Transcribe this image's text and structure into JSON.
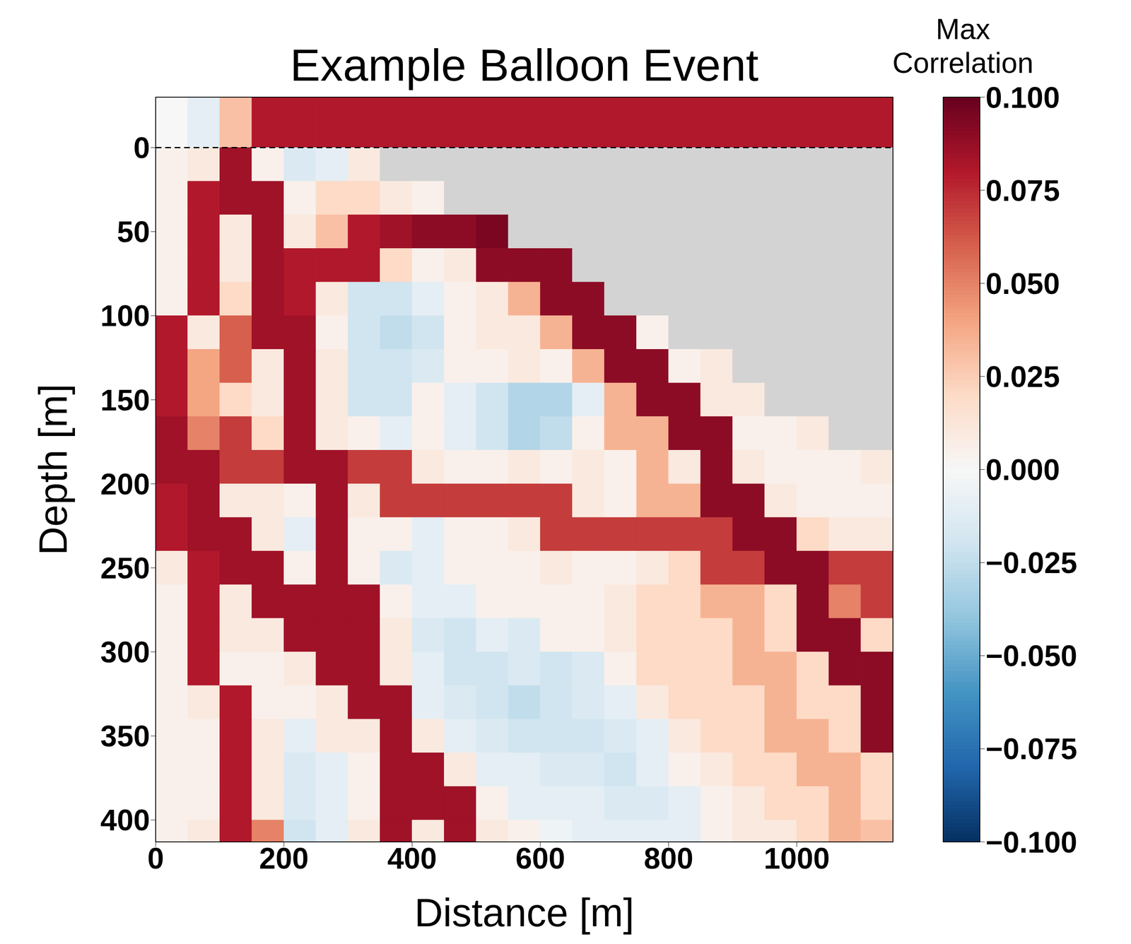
{
  "chart_data": {
    "type": "heatmap",
    "title": "Example Balloon Event",
    "x_label": "Distance [m]",
    "y_label": "Depth [m]",
    "xlim": [
      0,
      1150
    ],
    "ylim": [
      -30,
      413
    ],
    "xticks": [
      0,
      200,
      400,
      600,
      800,
      1000
    ],
    "yticks": [
      0,
      50,
      100,
      150,
      200,
      250,
      300,
      350,
      400
    ],
    "hline": 0,
    "x_edges": [
      0,
      50,
      100,
      150,
      200,
      250,
      300,
      350,
      400,
      450,
      500,
      550,
      600,
      650,
      700,
      750,
      800,
      850,
      900,
      950,
      1000,
      1050,
      1100,
      1150
    ],
    "y_edges": [
      -30,
      0,
      20,
      40,
      60,
      80,
      100,
      120,
      140,
      160,
      180,
      200,
      220,
      240,
      260,
      280,
      300,
      320,
      340,
      360,
      380,
      400,
      413
    ],
    "cells": [
      [
        0,
        -0.01,
        0.03,
        0.08,
        0.08,
        0.08,
        0.08,
        0.08,
        0.08,
        0.08,
        0.08,
        0.08,
        0.08,
        0.08,
        0.08,
        0.08,
        0.08,
        0.08,
        0.08,
        0.08,
        0.08,
        0.08,
        0.08
      ],
      [
        0.005,
        0.01,
        0.085,
        0.005,
        -0.015,
        -0.01,
        0.01,
        null,
        null,
        null,
        null,
        null,
        null,
        null,
        null,
        null,
        null,
        null,
        null,
        null,
        null,
        null,
        null
      ],
      [
        0.005,
        0.08,
        0.085,
        0.085,
        0.005,
        0.02,
        0.02,
        0.01,
        0.005,
        null,
        null,
        null,
        null,
        null,
        null,
        null,
        null,
        null,
        null,
        null,
        null,
        null,
        null
      ],
      [
        0.005,
        0.08,
        0.01,
        0.085,
        0.01,
        0.03,
        0.08,
        0.085,
        0.09,
        0.09,
        0.095,
        null,
        null,
        null,
        null,
        null,
        null,
        null,
        null,
        null,
        null,
        null,
        null
      ],
      [
        0.005,
        0.08,
        0.01,
        0.085,
        0.08,
        0.08,
        0.08,
        0.02,
        0.005,
        0.01,
        0.09,
        0.09,
        0.09,
        null,
        null,
        null,
        null,
        null,
        null,
        null,
        null,
        null,
        null
      ],
      [
        0.005,
        0.08,
        0.02,
        0.085,
        0.08,
        0.01,
        -0.02,
        -0.02,
        -0.01,
        0.005,
        0.01,
        0.035,
        0.09,
        0.09,
        null,
        null,
        null,
        null,
        null,
        null,
        null,
        null,
        null
      ],
      [
        0.08,
        0.01,
        0.06,
        0.085,
        0.085,
        0.005,
        -0.02,
        -0.025,
        -0.02,
        0.005,
        0.01,
        0.01,
        0.035,
        0.09,
        0.09,
        0.005,
        null,
        null,
        null,
        null,
        null,
        null,
        null
      ],
      [
        0.08,
        0.04,
        0.06,
        0.01,
        0.085,
        0.01,
        -0.02,
        -0.02,
        -0.015,
        0.005,
        0.005,
        0.01,
        0.005,
        0.035,
        0.09,
        0.09,
        0.005,
        0.01,
        null,
        null,
        null,
        null,
        null
      ],
      [
        0.08,
        0.04,
        0.02,
        0.01,
        0.085,
        0.01,
        -0.02,
        -0.02,
        0.005,
        -0.01,
        -0.02,
        -0.03,
        -0.03,
        -0.01,
        0.035,
        0.09,
        0.09,
        0.01,
        0.01,
        null,
        null,
        null,
        null
      ],
      [
        0.085,
        0.05,
        0.07,
        0.02,
        0.085,
        0.01,
        0.005,
        -0.01,
        0.005,
        -0.01,
        -0.02,
        -0.03,
        -0.025,
        0.005,
        0.035,
        0.035,
        0.09,
        0.09,
        0.005,
        0.005,
        0.01,
        null,
        null
      ],
      [
        0.085,
        0.085,
        0.07,
        0.07,
        0.085,
        0.085,
        0.07,
        0.07,
        0.01,
        0.005,
        0.005,
        0.01,
        0.005,
        0.01,
        0.005,
        0.035,
        0.01,
        0.09,
        0.01,
        0.005,
        0.005,
        0.005,
        0.01
      ],
      [
        0.08,
        0.085,
        0.01,
        0.01,
        0.005,
        0.085,
        0.01,
        0.07,
        0.07,
        0.07,
        0.07,
        0.07,
        0.07,
        0.01,
        0.005,
        0.035,
        0.035,
        0.09,
        0.09,
        0.01,
        0.005,
        0.005,
        0.005
      ],
      [
        0.08,
        0.085,
        0.085,
        0.01,
        -0.01,
        0.085,
        0.005,
        0.005,
        -0.01,
        0.005,
        0.005,
        0.01,
        0.07,
        0.07,
        0.07,
        0.07,
        0.07,
        0.07,
        0.09,
        0.09,
        0.02,
        0.01,
        0.01
      ],
      [
        0.01,
        0.08,
        0.085,
        0.085,
        0.005,
        0.085,
        0.005,
        -0.015,
        -0.01,
        0.005,
        0.005,
        0.005,
        0.01,
        0.005,
        0.005,
        0.01,
        0.02,
        0.07,
        0.07,
        0.09,
        0.09,
        0.07,
        0.07
      ],
      [
        0.005,
        0.08,
        0.01,
        0.085,
        0.085,
        0.085,
        0.085,
        0.005,
        -0.01,
        -0.01,
        0.005,
        0.005,
        0.005,
        0.005,
        0.01,
        0.02,
        0.02,
        0.035,
        0.035,
        0.02,
        0.09,
        0.05,
        0.07
      ],
      [
        0.005,
        0.08,
        0.01,
        0.01,
        0.085,
        0.085,
        0.085,
        0.01,
        -0.015,
        -0.02,
        -0.01,
        -0.015,
        0.005,
        0.005,
        0.01,
        0.02,
        0.02,
        0.02,
        0.035,
        0.02,
        0.09,
        0.09,
        0.02
      ],
      [
        0.005,
        0.08,
        0.005,
        0.005,
        0.01,
        0.085,
        0.085,
        0.01,
        -0.01,
        -0.02,
        -0.02,
        -0.015,
        -0.02,
        -0.015,
        0.005,
        0.02,
        0.02,
        0.02,
        0.035,
        0.035,
        0.02,
        0.09,
        0.09
      ],
      [
        0.005,
        0.01,
        0.08,
        0.005,
        0.005,
        0.01,
        0.085,
        0.085,
        -0.01,
        -0.015,
        -0.02,
        -0.025,
        -0.02,
        -0.015,
        -0.01,
        0.01,
        0.02,
        0.02,
        0.02,
        0.035,
        0.02,
        0.02,
        0.09
      ],
      [
        0.005,
        0.005,
        0.08,
        0.01,
        -0.01,
        0.01,
        0.01,
        0.085,
        0.01,
        -0.01,
        -0.015,
        -0.02,
        -0.02,
        -0.02,
        -0.015,
        -0.01,
        0.01,
        0.02,
        0.02,
        0.035,
        0.035,
        0.02,
        0.09
      ],
      [
        0.005,
        0.005,
        0.08,
        0.01,
        -0.015,
        -0.01,
        0.005,
        0.085,
        0.085,
        0.01,
        -0.01,
        -0.01,
        -0.015,
        -0.015,
        -0.02,
        -0.01,
        0.005,
        0.01,
        0.02,
        0.02,
        0.035,
        0.035,
        0.02
      ],
      [
        0.005,
        0.005,
        0.08,
        0.01,
        -0.015,
        -0.01,
        0.005,
        0.085,
        0.085,
        0.085,
        0.005,
        -0.01,
        -0.01,
        -0.01,
        -0.015,
        -0.015,
        -0.01,
        0.005,
        0.01,
        0.02,
        0.02,
        0.035,
        0.02
      ],
      [
        0.005,
        0.01,
        0.08,
        0.05,
        -0.02,
        -0.01,
        0.01,
        0.085,
        0.01,
        0.085,
        0.01,
        0.005,
        -0.005,
        -0.01,
        -0.01,
        -0.01,
        -0.01,
        0.005,
        0.01,
        0.01,
        0.02,
        0.035,
        0.03
      ]
    ],
    "colorbar": {
      "label": "Max Correlation",
      "range": [
        -0.1,
        0.1
      ],
      "ticks": [
        {
          "value": 0.1,
          "label": "0.100"
        },
        {
          "value": 0.075,
          "label": "0.075"
        },
        {
          "value": 0.05,
          "label": "0.050"
        },
        {
          "value": 0.025,
          "label": "0.025"
        },
        {
          "value": 0,
          "label": "0.000"
        },
        {
          "value": -0.025,
          "label": "−0.025"
        },
        {
          "value": -0.05,
          "label": "−0.050"
        },
        {
          "value": -0.075,
          "label": "−0.075"
        },
        {
          "value": -0.1,
          "label": "−0.100"
        }
      ]
    }
  }
}
